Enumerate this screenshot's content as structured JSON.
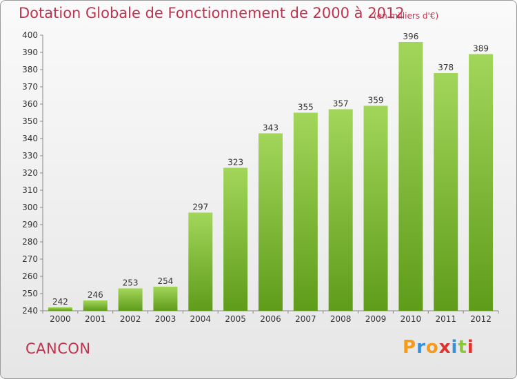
{
  "title": "Dotation Globale de Fonctionnement de 2000 à 2012",
  "subtitle": "(en milliers d'€)",
  "commune": "CANCON",
  "logo": {
    "letters": [
      "P",
      "r",
      "o",
      "x",
      "i",
      "t",
      "i"
    ],
    "colors": [
      "#f59a1b",
      "#3a8fd6",
      "#f59a1b",
      "#e0312f",
      "#3a8fd6",
      "#8cc63f",
      "#e0312f"
    ]
  },
  "colors": {
    "bar_top": "#a2d65a",
    "bar_bottom": "#5f9c1a",
    "title": "#c0324e"
  },
  "chart_data": {
    "type": "bar",
    "categories": [
      "2000",
      "2001",
      "2002",
      "2003",
      "2004",
      "2005",
      "2006",
      "2007",
      "2008",
      "2009",
      "2010",
      "2011",
      "2012"
    ],
    "values": [
      242,
      246,
      253,
      254,
      297,
      323,
      343,
      355,
      357,
      359,
      396,
      378,
      389
    ],
    "ylim": [
      240,
      400
    ],
    "yticks": [
      240,
      250,
      260,
      270,
      280,
      290,
      300,
      310,
      320,
      330,
      340,
      350,
      360,
      370,
      380,
      390,
      400
    ],
    "grid": false,
    "legend": "none"
  }
}
